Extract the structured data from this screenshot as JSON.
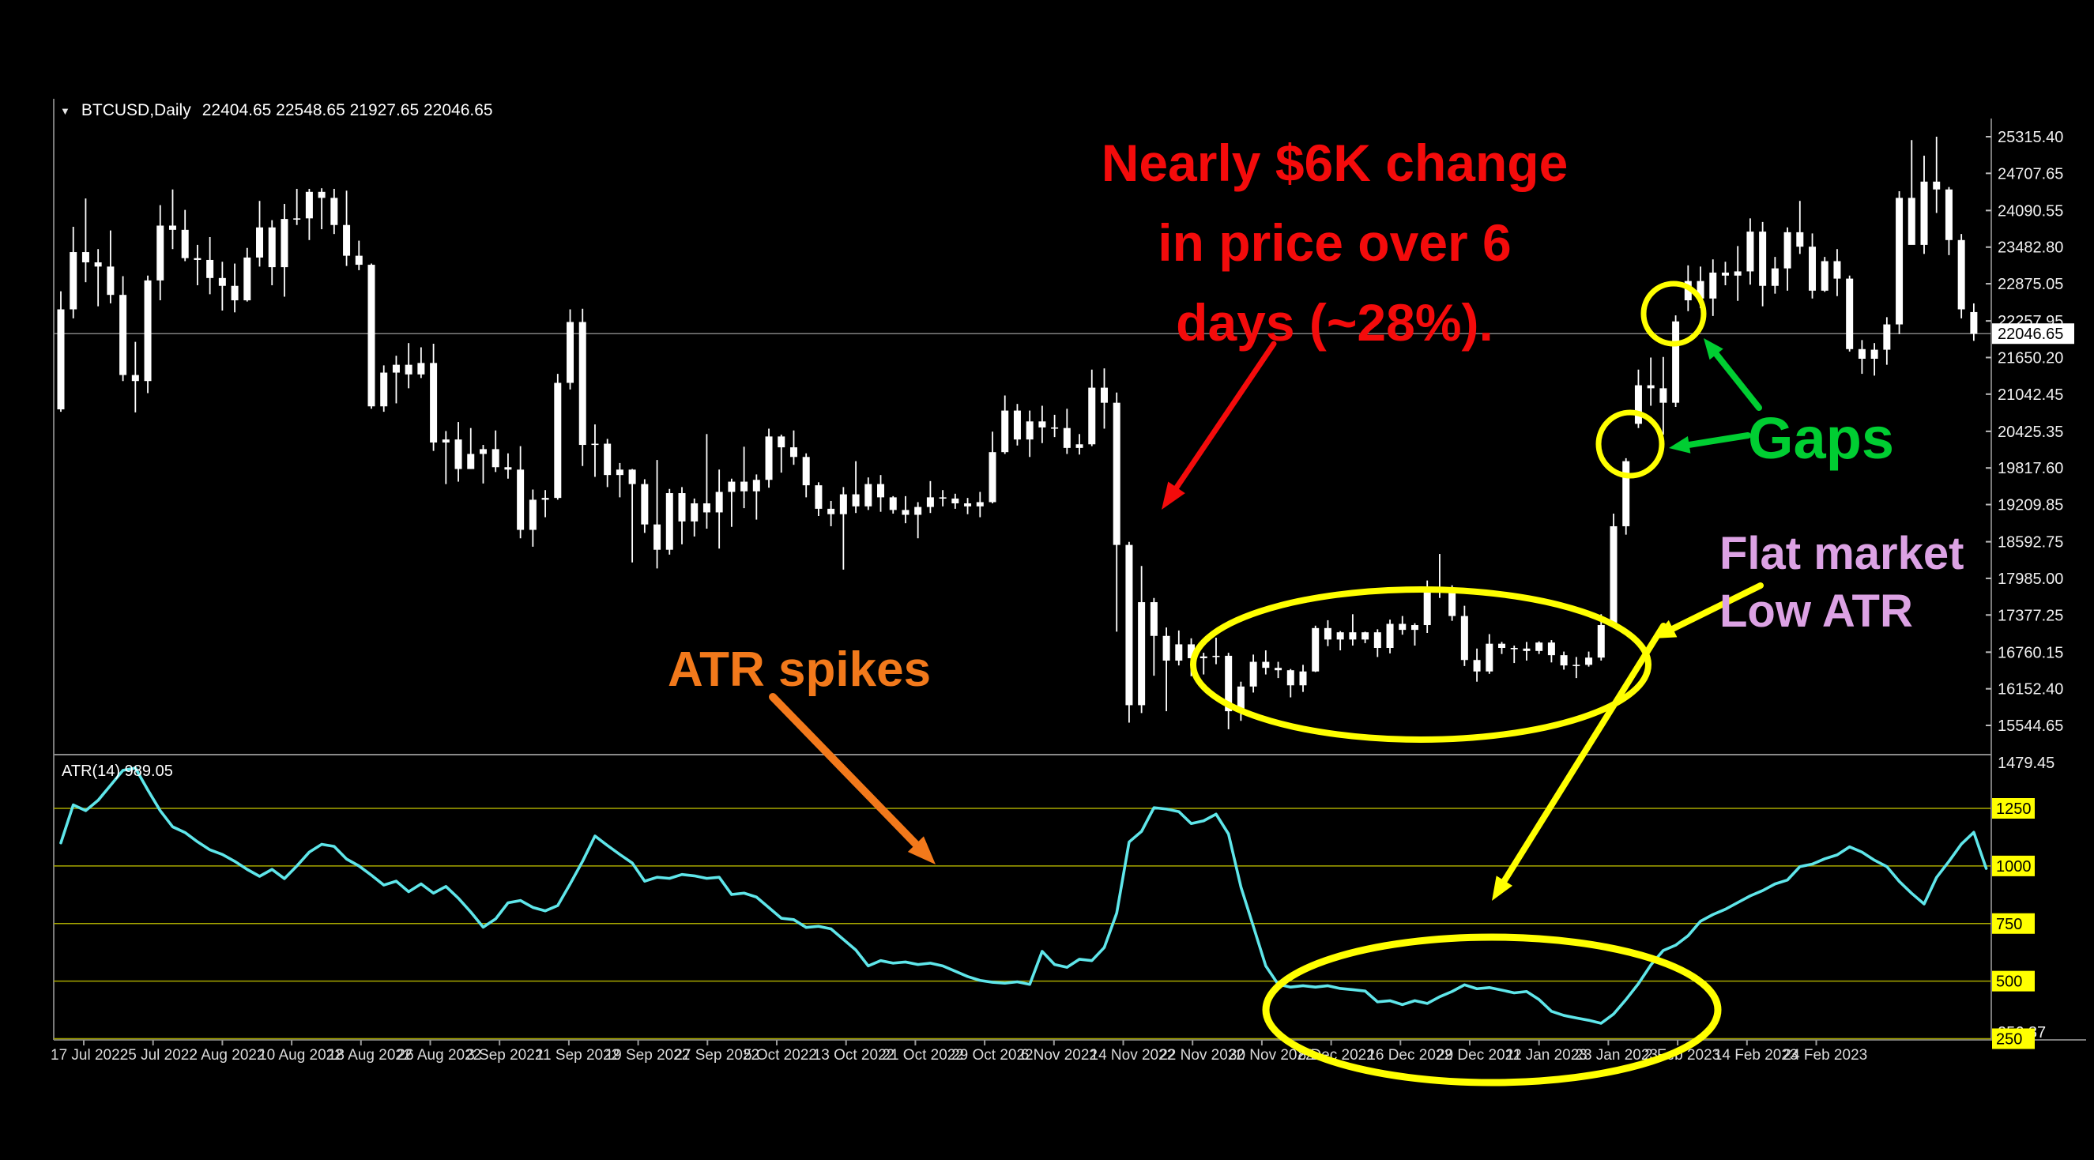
{
  "window": {
    "title_symbol": "BTCUSD,Daily",
    "title_ohlc": "22404.65 22548.65 21927.65 22046.65",
    "dropdown_icon": "▼"
  },
  "chart_data": {
    "type": "candlestick",
    "title": "BTCUSD,Daily",
    "timeframe": "Daily",
    "last_bar": {
      "open": 22404.65,
      "high": 22548.65,
      "low": 21927.65,
      "close": 22046.65
    },
    "current_price_label": "22046.65",
    "price_axis": {
      "labels": [
        "25315.40",
        "24707.65",
        "24090.55",
        "23482.80",
        "22875.05",
        "22257.95",
        "21650.20",
        "21042.45",
        "20425.35",
        "19817.60",
        "19209.85",
        "18592.75",
        "17985.00",
        "17377.25",
        "16760.15",
        "16152.40",
        "15544.65"
      ],
      "highlight": "22046.65",
      "range": [
        15060,
        25420
      ]
    },
    "x_axis": {
      "labels": [
        "17 Jul 2022",
        "25 Jul 2022",
        "2 Aug 2022",
        "10 Aug 2022",
        "18 Aug 2022",
        "26 Aug 2022",
        "3 Sep 2022",
        "11 Sep 2022",
        "19 Sep 2022",
        "27 Sep 2022",
        "5 Oct 2022",
        "13 Oct 2022",
        "21 Oct 2022",
        "29 Oct 2022",
        "6 Nov 2022",
        "14 Nov 2022",
        "22 Nov 2022",
        "30 Nov 2022",
        "8 Dec 2022",
        "16 Dec 2022",
        "29 Dec 2022",
        "11 Jan 2023",
        "23 Jan 2023",
        "2 Feb 2023",
        "14 Feb 2023",
        "24 Feb 2023"
      ]
    },
    "candles": [
      [
        20790,
        22750,
        20750,
        22450
      ],
      [
        22450,
        23820,
        22300,
        23400
      ],
      [
        23400,
        24290,
        22900,
        23230
      ],
      [
        23230,
        23450,
        22500,
        23160
      ],
      [
        23160,
        23760,
        22550,
        22690
      ],
      [
        22690,
        23000,
        21260,
        21360
      ],
      [
        21360,
        21910,
        20740,
        21260
      ],
      [
        21260,
        23010,
        21060,
        22930
      ],
      [
        22930,
        24180,
        22600,
        23840
      ],
      [
        23840,
        24440,
        23450,
        23770
      ],
      [
        23770,
        24100,
        23250,
        23300
      ],
      [
        23300,
        23520,
        22850,
        23270
      ],
      [
        23270,
        23650,
        22700,
        22970
      ],
      [
        22970,
        23240,
        22430,
        22840
      ],
      [
        22840,
        23210,
        22400,
        22600
      ],
      [
        22600,
        23470,
        22580,
        23310
      ],
      [
        23310,
        24250,
        23160,
        23810
      ],
      [
        23810,
        23930,
        22850,
        23150
      ],
      [
        23150,
        24200,
        22660,
        23950
      ],
      [
        23950,
        24450,
        23850,
        23960
      ],
      [
        23960,
        24450,
        23600,
        24400
      ],
      [
        24400,
        24460,
        23780,
        24300
      ],
      [
        24300,
        24450,
        23700,
        23850
      ],
      [
        23850,
        24420,
        23170,
        23340
      ],
      [
        23340,
        23590,
        23100,
        23190
      ],
      [
        23190,
        23210,
        20800,
        20840
      ],
      [
        20840,
        21520,
        20750,
        21400
      ],
      [
        21400,
        21680,
        20890,
        21530
      ],
      [
        21530,
        21890,
        21140,
        21370
      ],
      [
        21370,
        21820,
        21310,
        21560
      ],
      [
        21560,
        21880,
        20100,
        20240
      ],
      [
        20240,
        20430,
        19550,
        20290
      ],
      [
        20290,
        20580,
        19590,
        19800
      ],
      [
        19800,
        20480,
        19800,
        20050
      ],
      [
        20050,
        20200,
        19560,
        20130
      ],
      [
        20130,
        20440,
        19750,
        19830
      ],
      [
        19830,
        20060,
        19640,
        19790
      ],
      [
        19790,
        20180,
        18650,
        18790
      ],
      [
        18790,
        19460,
        18510,
        19290
      ],
      [
        19290,
        19450,
        19000,
        19320
      ],
      [
        19320,
        21380,
        19290,
        21230
      ],
      [
        21230,
        22450,
        21120,
        22240
      ],
      [
        22240,
        22460,
        19850,
        20200
      ],
      [
        20200,
        20540,
        19670,
        20220
      ],
      [
        20220,
        20300,
        19500,
        19700
      ],
      [
        19700,
        19900,
        19330,
        19790
      ],
      [
        19790,
        19800,
        18250,
        19550
      ],
      [
        19550,
        19630,
        18740,
        18880
      ],
      [
        18880,
        19950,
        18150,
        18460
      ],
      [
        18460,
        19470,
        18380,
        19400
      ],
      [
        19400,
        19500,
        18550,
        18930
      ],
      [
        18930,
        19310,
        18680,
        19230
      ],
      [
        19230,
        20380,
        18810,
        19080
      ],
      [
        19080,
        19790,
        18480,
        19420
      ],
      [
        19420,
        19640,
        18840,
        19590
      ],
      [
        19590,
        20170,
        19150,
        19430
      ],
      [
        19430,
        19710,
        18960,
        19620
      ],
      [
        19620,
        20470,
        19490,
        20340
      ],
      [
        20340,
        20370,
        19740,
        20160
      ],
      [
        20160,
        20440,
        19870,
        20000
      ],
      [
        20000,
        20060,
        19330,
        19530
      ],
      [
        19530,
        19580,
        19020,
        19140
      ],
      [
        19140,
        19270,
        18850,
        19050
      ],
      [
        19050,
        19500,
        18130,
        19380
      ],
      [
        19380,
        19930,
        19070,
        19180
      ],
      [
        19180,
        19660,
        19120,
        19550
      ],
      [
        19550,
        19700,
        19090,
        19330
      ],
      [
        19330,
        19350,
        19060,
        19120
      ],
      [
        19120,
        19350,
        18900,
        19040
      ],
      [
        19040,
        19250,
        18650,
        19170
      ],
      [
        19170,
        19600,
        19070,
        19330
      ],
      [
        19330,
        19450,
        19180,
        19310
      ],
      [
        19310,
        19390,
        19140,
        19230
      ],
      [
        19230,
        19320,
        19050,
        19180
      ],
      [
        19180,
        19420,
        19000,
        19250
      ],
      [
        19250,
        20420,
        19230,
        20080
      ],
      [
        20080,
        21020,
        20050,
        20770
      ],
      [
        20770,
        20880,
        20190,
        20290
      ],
      [
        20290,
        20770,
        20000,
        20590
      ],
      [
        20590,
        20850,
        20230,
        20490
      ],
      [
        20490,
        20700,
        20330,
        20480
      ],
      [
        20480,
        20800,
        20050,
        20150
      ],
      [
        20150,
        20380,
        20040,
        20210
      ],
      [
        20210,
        21450,
        20180,
        21150
      ],
      [
        21150,
        21470,
        20470,
        20900
      ],
      [
        20900,
        21070,
        17100,
        18540
      ],
      [
        18540,
        18590,
        15590,
        15880
      ],
      [
        15880,
        18190,
        15750,
        17590
      ],
      [
        17590,
        17660,
        16370,
        17030
      ],
      [
        17030,
        17170,
        15780,
        16620
      ],
      [
        16620,
        17120,
        16540,
        16890
      ],
      [
        16890,
        16990,
        16360,
        16660
      ],
      [
        16660,
        16750,
        16390,
        16690
      ],
      [
        16690,
        17000,
        16560,
        16700
      ],
      [
        16700,
        16750,
        15480,
        15780
      ],
      [
        15780,
        16270,
        15620,
        16190
      ],
      [
        16190,
        16720,
        16090,
        16600
      ],
      [
        16600,
        16790,
        16390,
        16500
      ],
      [
        16500,
        16600,
        16330,
        16460
      ],
      [
        16460,
        16480,
        16010,
        16210
      ],
      [
        16210,
        16550,
        16100,
        16440
      ],
      [
        16440,
        17200,
        16430,
        17160
      ],
      [
        17160,
        17290,
        16860,
        16970
      ],
      [
        16970,
        17110,
        16790,
        17090
      ],
      [
        17090,
        17390,
        16870,
        16970
      ],
      [
        16970,
        17100,
        16910,
        17090
      ],
      [
        17090,
        17140,
        16680,
        16830
      ],
      [
        16830,
        17300,
        16740,
        17230
      ],
      [
        17230,
        17360,
        17050,
        17130
      ],
      [
        17130,
        17240,
        16870,
        17210
      ],
      [
        17210,
        17950,
        17080,
        17780
      ],
      [
        17780,
        18390,
        17660,
        17810
      ],
      [
        17810,
        17870,
        17280,
        17360
      ],
      [
        17360,
        17530,
        16530,
        16630
      ],
      [
        16630,
        16820,
        16270,
        16440
      ],
      [
        16440,
        17060,
        16400,
        16900
      ],
      [
        16900,
        16930,
        16730,
        16830
      ],
      [
        16830,
        16870,
        16580,
        16820
      ],
      [
        16820,
        16930,
        16620,
        16780
      ],
      [
        16780,
        16940,
        16730,
        16920
      ],
      [
        16920,
        16960,
        16590,
        16710
      ],
      [
        16710,
        16770,
        16470,
        16540
      ],
      [
        16540,
        16680,
        16330,
        16550
      ],
      [
        16550,
        16770,
        16520,
        16670
      ],
      [
        16670,
        17390,
        16620,
        17210
      ],
      [
        17210,
        19060,
        17160,
        18850
      ],
      [
        18850,
        19980,
        18710,
        19930
      ],
      [
        20550,
        21450,
        20480,
        21190
      ],
      [
        21190,
        21650,
        20850,
        21140
      ],
      [
        21140,
        21660,
        20370,
        20900
      ],
      [
        20900,
        22350,
        20830,
        22250
      ],
      [
        22600,
        23180,
        22420,
        22920
      ],
      [
        22920,
        23160,
        22470,
        22630
      ],
      [
        22630,
        23280,
        22340,
        23060
      ],
      [
        23060,
        23240,
        22850,
        23010
      ],
      [
        23010,
        23500,
        22590,
        23080
      ],
      [
        23080,
        23960,
        22860,
        23740
      ],
      [
        23740,
        23900,
        22500,
        22840
      ],
      [
        22840,
        23320,
        22710,
        23130
      ],
      [
        23130,
        23810,
        22760,
        23730
      ],
      [
        23730,
        24250,
        23370,
        23490
      ],
      [
        23490,
        23710,
        22630,
        22760
      ],
      [
        22760,
        23320,
        22740,
        23250
      ],
      [
        23250,
        23450,
        22670,
        22960
      ],
      [
        22960,
        23010,
        21750,
        21790
      ],
      [
        21790,
        21940,
        21380,
        21630
      ],
      [
        21630,
        21890,
        21350,
        21780
      ],
      [
        21780,
        22320,
        21530,
        22200
      ],
      [
        22200,
        24410,
        22040,
        24300
      ],
      [
        24300,
        25260,
        23570,
        23520
      ],
      [
        23520,
        25000,
        23370,
        24570
      ],
      [
        24570,
        25315,
        24050,
        24440
      ],
      [
        24440,
        24480,
        23350,
        23600
      ],
      [
        23600,
        23700,
        22300,
        22450
      ],
      [
        22404.65,
        22548.65,
        21927.65,
        22046.65
      ]
    ],
    "indicator": {
      "name": "ATR",
      "period": 14,
      "label": "ATR(14) 989.05",
      "current": 989.05,
      "levels": [
        "1250",
        "1000",
        "750",
        "500",
        "250"
      ],
      "scale_max": "1479.45",
      "scale_min": "256.87",
      "values": [
        1100,
        1265,
        1240,
        1285,
        1350,
        1415,
        1425,
        1330,
        1240,
        1170,
        1145,
        1105,
        1070,
        1050,
        1020,
        985,
        955,
        985,
        945,
        1000,
        1060,
        1094,
        1085,
        1030,
        1000,
        960,
        917,
        934,
        888,
        922,
        882,
        911,
        860,
        800,
        734,
        770,
        840,
        850,
        820,
        805,
        828,
        922,
        1020,
        1130,
        1089,
        1050,
        1013,
        934,
        951,
        946,
        963,
        957,
        946,
        951,
        876,
        882,
        865,
        819,
        773,
        767,
        733,
        738,
        727,
        681,
        635,
        566,
        589,
        578,
        583,
        572,
        578,
        566,
        543,
        520,
        503,
        495,
        491,
        497,
        486,
        629,
        572,
        560,
        595,
        589,
        646,
        795,
        1104,
        1150,
        1253,
        1247,
        1236,
        1184,
        1196,
        1225,
        1139,
        909,
        738,
        566,
        486,
        474,
        480,
        474,
        480,
        468,
        463,
        457,
        410,
        415,
        398,
        415,
        403,
        432,
        455,
        484,
        467,
        472,
        461,
        449,
        455,
        420,
        369,
        351,
        340,
        330,
        317,
        357,
        420,
        489,
        570,
        633,
        656,
        697,
        760,
        789,
        812,
        841,
        870,
        893,
        922,
        939,
        997,
        1008,
        1031,
        1048,
        1083,
        1060,
        1025,
        997,
        933,
        881,
        835,
        950,
        1020,
        1095,
        1146,
        989
      ],
      "range": [
        256.87,
        1479.45
      ]
    },
    "legend_position": "none",
    "grid": "horizontal-levels-indicator-only"
  },
  "annotations": {
    "price_change_note": {
      "lines": [
        "Nearly $6K change",
        "in price over 6",
        "days (~28%)."
      ],
      "color": "#F40B0B"
    },
    "gaps_note": {
      "text": "Gaps",
      "color": "#00CE32"
    },
    "flat_note": {
      "lines": [
        "Flat market",
        "Low ATR"
      ],
      "color": "#DCA2E4"
    },
    "atr_spikes_note": {
      "text": "ATR spikes",
      "color": "#F2791B"
    },
    "highlight_color": "#FFFF00"
  },
  "colors": {
    "background": "#000000",
    "candle": "#FFFFFF",
    "atr_line": "#5FE6EA",
    "level_line": "#A8A800",
    "level_box_bg": "#FFFF00",
    "price_line": "#9A9A9A",
    "axis_text": "#F0F0F0",
    "date_text": "#DADADA",
    "frame": "#7A7A7A"
  }
}
